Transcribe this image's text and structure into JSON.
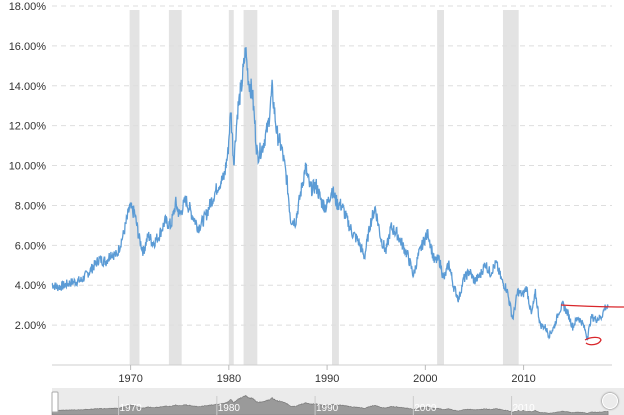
{
  "chart_data": {
    "type": "line",
    "title": "",
    "xlabel": "",
    "ylabel": "",
    "xlim": [
      1962,
      2019
    ],
    "ylim": [
      0,
      18
    ],
    "y_ticks": [
      2,
      4,
      6,
      8,
      10,
      12,
      14,
      16,
      18
    ],
    "y_tick_labels": [
      "2.00%",
      "4.00%",
      "6.00%",
      "8.00%",
      "10.00%",
      "12.00%",
      "14.00%",
      "16.00%",
      "18.00%"
    ],
    "x_ticks": [
      1970,
      1980,
      1990,
      2000,
      2010
    ],
    "x_tick_labels": [
      "1970",
      "1980",
      "1990",
      "2000",
      "2010"
    ],
    "grid": true,
    "line_color": "#5b9bd5",
    "recession_color": "#e3e3e3",
    "recessions": [
      [
        1969.9,
        1970.9
      ],
      [
        1973.9,
        1975.2
      ],
      [
        1980.0,
        1980.5
      ],
      [
        1981.5,
        1982.9
      ],
      [
        1990.5,
        1991.2
      ],
      [
        2001.2,
        2001.9
      ],
      [
        2007.9,
        2009.5
      ]
    ],
    "series": [
      {
        "values": [
          [
            1962.0,
            4.05
          ],
          [
            1962.5,
            3.9
          ],
          [
            1963.0,
            3.95
          ],
          [
            1964.0,
            4.15
          ],
          [
            1965.0,
            4.25
          ],
          [
            1966.0,
            4.8
          ],
          [
            1966.8,
            5.3
          ],
          [
            1967.5,
            5.2
          ],
          [
            1968.0,
            5.6
          ],
          [
            1968.6,
            5.5
          ],
          [
            1969.3,
            6.6
          ],
          [
            1969.9,
            7.9
          ],
          [
            1970.4,
            7.6
          ],
          [
            1970.9,
            6.3
          ],
          [
            1971.3,
            5.7
          ],
          [
            1971.8,
            6.5
          ],
          [
            1972.3,
            6.1
          ],
          [
            1972.9,
            6.5
          ],
          [
            1973.5,
            7.2
          ],
          [
            1974.1,
            7.0
          ],
          [
            1974.6,
            8.1
          ],
          [
            1975.0,
            7.5
          ],
          [
            1975.6,
            8.3
          ],
          [
            1976.2,
            7.6
          ],
          [
            1976.9,
            6.9
          ],
          [
            1977.6,
            7.4
          ],
          [
            1978.2,
            8.2
          ],
          [
            1978.9,
            9.0
          ],
          [
            1979.5,
            9.4
          ],
          [
            1979.9,
            10.6
          ],
          [
            1980.2,
            12.8
          ],
          [
            1980.5,
            10.2
          ],
          [
            1980.9,
            12.8
          ],
          [
            1981.3,
            14.0
          ],
          [
            1981.7,
            15.8
          ],
          [
            1982.0,
            14.3
          ],
          [
            1982.4,
            13.6
          ],
          [
            1982.9,
            10.5
          ],
          [
            1983.4,
            10.9
          ],
          [
            1984.0,
            12.0
          ],
          [
            1984.4,
            13.8
          ],
          [
            1984.9,
            11.6
          ],
          [
            1985.4,
            10.8
          ],
          [
            1985.9,
            9.3
          ],
          [
            1986.3,
            7.3
          ],
          [
            1986.8,
            7.2
          ],
          [
            1987.3,
            8.6
          ],
          [
            1987.8,
            9.9
          ],
          [
            1988.3,
            8.8
          ],
          [
            1988.9,
            9.0
          ],
          [
            1989.4,
            8.2
          ],
          [
            1989.9,
            7.9
          ],
          [
            1990.5,
            8.8
          ],
          [
            1991.0,
            8.1
          ],
          [
            1991.5,
            8.0
          ],
          [
            1992.0,
            7.3
          ],
          [
            1992.6,
            6.6
          ],
          [
            1993.2,
            6.2
          ],
          [
            1993.8,
            5.4
          ],
          [
            1994.4,
            7.1
          ],
          [
            1994.9,
            7.9
          ],
          [
            1995.5,
            6.3
          ],
          [
            1996.0,
            5.7
          ],
          [
            1996.5,
            6.9
          ],
          [
            1997.1,
            6.6
          ],
          [
            1997.7,
            6.0
          ],
          [
            1998.2,
            5.5
          ],
          [
            1998.8,
            4.5
          ],
          [
            1999.3,
            5.5
          ],
          [
            1999.9,
            6.3
          ],
          [
            2000.3,
            6.6
          ],
          [
            2000.9,
            5.2
          ],
          [
            2001.4,
            5.3
          ],
          [
            2001.9,
            4.3
          ],
          [
            2002.4,
            5.1
          ],
          [
            2002.9,
            3.9
          ],
          [
            2003.4,
            3.3
          ],
          [
            2003.9,
            4.3
          ],
          [
            2004.5,
            4.7
          ],
          [
            2005.0,
            4.2
          ],
          [
            2005.6,
            4.5
          ],
          [
            2006.1,
            5.1
          ],
          [
            2006.6,
            4.6
          ],
          [
            2007.2,
            5.1
          ],
          [
            2007.8,
            4.2
          ],
          [
            2008.3,
            3.8
          ],
          [
            2008.9,
            2.3
          ],
          [
            2009.4,
            3.7
          ],
          [
            2009.9,
            3.5
          ],
          [
            2010.3,
            3.9
          ],
          [
            2010.8,
            2.5
          ],
          [
            2011.2,
            3.6
          ],
          [
            2011.7,
            2.0
          ],
          [
            2012.2,
            1.9
          ],
          [
            2012.6,
            1.5
          ],
          [
            2013.1,
            1.9
          ],
          [
            2013.6,
            2.7
          ],
          [
            2014.0,
            3.0
          ],
          [
            2014.5,
            2.6
          ],
          [
            2015.0,
            1.9
          ],
          [
            2015.5,
            2.4
          ],
          [
            2016.0,
            2.1
          ],
          [
            2016.5,
            1.4
          ],
          [
            2016.9,
            2.4
          ],
          [
            2017.4,
            2.3
          ],
          [
            2017.9,
            2.4
          ],
          [
            2018.3,
            2.9
          ],
          [
            2018.6,
            2.9
          ]
        ]
      }
    ]
  }
}
